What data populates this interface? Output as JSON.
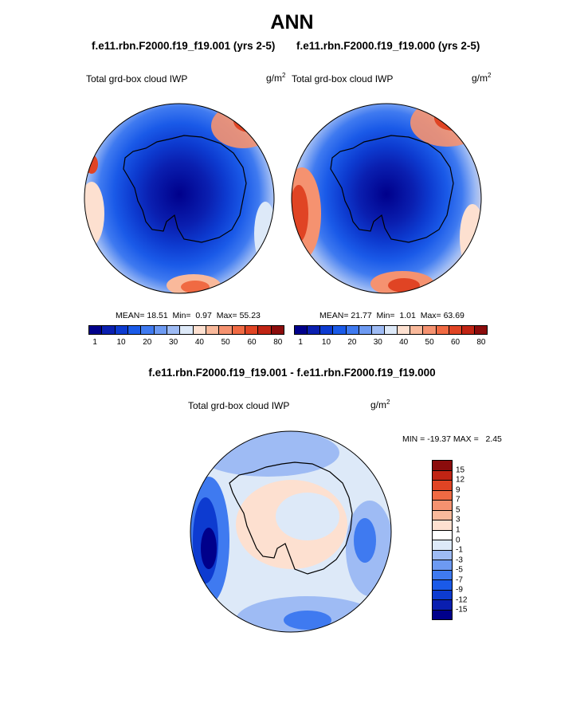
{
  "title": "ANN",
  "panels": [
    {
      "case": "f.e11.rbn.F2000.f19_f19.001 (yrs 2-5)",
      "variable": "Total grd-box cloud IWP",
      "unit_base": "g/m",
      "unit_exp": "2",
      "mean_label": "MEAN=",
      "mean": "18.51",
      "min_label": "Min=",
      "min": "0.97",
      "max_label": "Max=",
      "max": "55.23"
    },
    {
      "case": "f.e11.rbn.F2000.f19_f19.000 (yrs 2-5)",
      "variable": "Total grd-box cloud IWP",
      "unit_base": "g/m",
      "unit_exp": "2",
      "mean_label": "MEAN=",
      "mean": "21.77",
      "min_label": "Min=",
      "min": "1.01",
      "max_label": "Max=",
      "max": "63.69"
    }
  ],
  "abs_colorbar": {
    "ticks": [
      "1",
      "10",
      "20",
      "30",
      "40",
      "50",
      "60",
      "80"
    ],
    "colors": [
      "#00008b",
      "#0a1fb0",
      "#0d3bd0",
      "#1a5ae8",
      "#3f7af0",
      "#6d9af2",
      "#9ebbf4",
      "#dde9f8",
      "#fde0d0",
      "#f9b99b",
      "#f59270",
      "#f06a43",
      "#e04424",
      "#c02414",
      "#8b0c0c"
    ]
  },
  "diff": {
    "title": "f.e11.rbn.F2000.f19_f19.001 - f.e11.rbn.F2000.f19_f19.000",
    "variable": "Total grd-box cloud IWP",
    "unit_base": "g/m",
    "unit_exp": "2",
    "minmax_text": "MIN = -19.37 MAX =   2.45",
    "colorbar": {
      "ticks": [
        "15",
        "12",
        "9",
        "7",
        "5",
        "3",
        "1",
        "0",
        "-1",
        "-3",
        "-5",
        "-7",
        "-9",
        "-12",
        "-15"
      ],
      "colors": [
        "#8b0c0c",
        "#c02414",
        "#e04424",
        "#f06a43",
        "#f59270",
        "#f9b99b",
        "#fde0d0",
        "#ffffff",
        "#dde9f8",
        "#9ebbf4",
        "#6d9af2",
        "#3f7af0",
        "#1a5ae8",
        "#0d3bd0",
        "#0a1fb0",
        "#00008b"
      ]
    }
  },
  "colors": {
    "ocean_light": "#dde9f8",
    "ice_dark": "#0a1fb0",
    "warm": "#f06a43"
  }
}
